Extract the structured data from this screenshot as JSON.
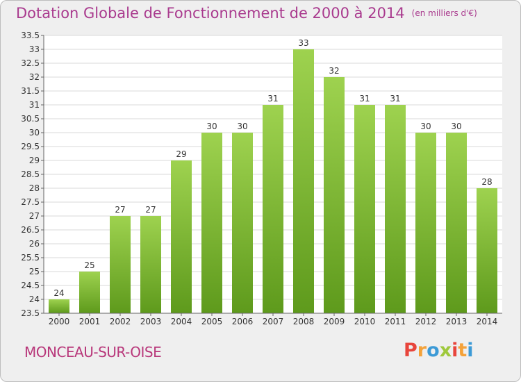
{
  "header": {
    "title": "Dotation Globale de Fonctionnement de 2000 à 2014",
    "subtitle": "(en milliers d'€)"
  },
  "footer": {
    "commune": "MONCEAU-SUR-OISE",
    "logo_letters": [
      "P",
      "r",
      "o",
      "x",
      "i",
      "t",
      "i"
    ],
    "logo_colors": [
      "#e8453c",
      "#f4a23a",
      "#3c9ad6",
      "#9fc93c",
      "#e8453c",
      "#f4a23a",
      "#3c9ad6"
    ]
  },
  "chart_data": {
    "type": "bar",
    "title": "Dotation Globale de Fonctionnement de 2000 à 2014",
    "subtitle": "(en milliers d'€)",
    "categories": [
      "2000",
      "2001",
      "2002",
      "2003",
      "2004",
      "2005",
      "2006",
      "2007",
      "2008",
      "2009",
      "2010",
      "2011",
      "2012",
      "2013",
      "2014"
    ],
    "values": [
      24,
      25,
      27,
      27,
      29,
      30,
      30,
      31,
      33,
      32,
      31,
      31,
      30,
      30,
      28
    ],
    "value_labels": [
      "24",
      "25",
      "27",
      "27",
      "29",
      "30",
      "30",
      "31",
      "33",
      "32",
      "31",
      "31",
      "30",
      "30",
      "28"
    ],
    "y_ticks": [
      "23.5",
      "24",
      "24.5",
      "25",
      "25.5",
      "26",
      "26.5",
      "27",
      "27.5",
      "28",
      "28.5",
      "29",
      "29.5",
      "30",
      "30.5",
      "31",
      "31.5",
      "32",
      "32.5",
      "33",
      "33.5"
    ],
    "ylim": [
      23.5,
      33.5
    ],
    "grid": true,
    "bar_color_top": "#9ed24f",
    "bar_color_bottom": "#5e9a1c"
  }
}
